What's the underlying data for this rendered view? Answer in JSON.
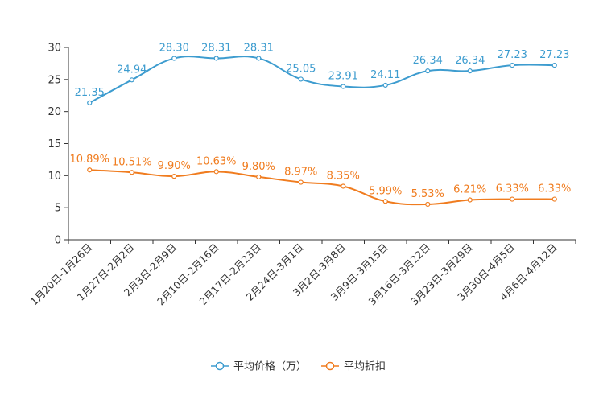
{
  "chart_data": {
    "type": "line",
    "title": "",
    "xlabel": "",
    "ylabel": "",
    "ylim": [
      0,
      30
    ],
    "yticks": [
      0,
      5,
      10,
      15,
      20,
      25,
      30
    ],
    "grid": false,
    "legend_position": "bottom-center",
    "categories": [
      "1月20日-1月26日",
      "1月27日-2月2日",
      "2月3日-2月9日",
      "2月10日-2月16日",
      "2月17日-2月23日",
      "2月24日-3月1日",
      "3月2日-3月8日",
      "3月9日-3月15日",
      "3月16日-3月22日",
      "3月23日-3月29日",
      "3月30日-4月5日",
      "4月6日-4月12日"
    ],
    "series": [
      {
        "name": "平均价格（万）",
        "color": "#3d9ccf",
        "values": [
          21.35,
          24.94,
          28.3,
          28.31,
          28.31,
          25.05,
          23.91,
          24.11,
          26.34,
          26.34,
          27.23,
          27.23
        ],
        "labels": [
          "21.35",
          "24.94",
          "28.30",
          "28.31",
          "28.31",
          "25.05",
          "23.91",
          "24.11",
          "26.34",
          "26.34",
          "27.23",
          "27.23"
        ]
      },
      {
        "name": "平均折扣",
        "color": "#f07c1f",
        "values": [
          10.89,
          10.51,
          9.9,
          10.63,
          9.8,
          8.97,
          8.35,
          5.99,
          5.53,
          6.21,
          6.33,
          6.33
        ],
        "labels": [
          "10.89%",
          "10.51%",
          "9.90%",
          "10.63%",
          "9.80%",
          "8.97%",
          "8.35%",
          "5.99%",
          "5.53%",
          "6.21%",
          "6.33%",
          "6.33%"
        ]
      }
    ]
  }
}
